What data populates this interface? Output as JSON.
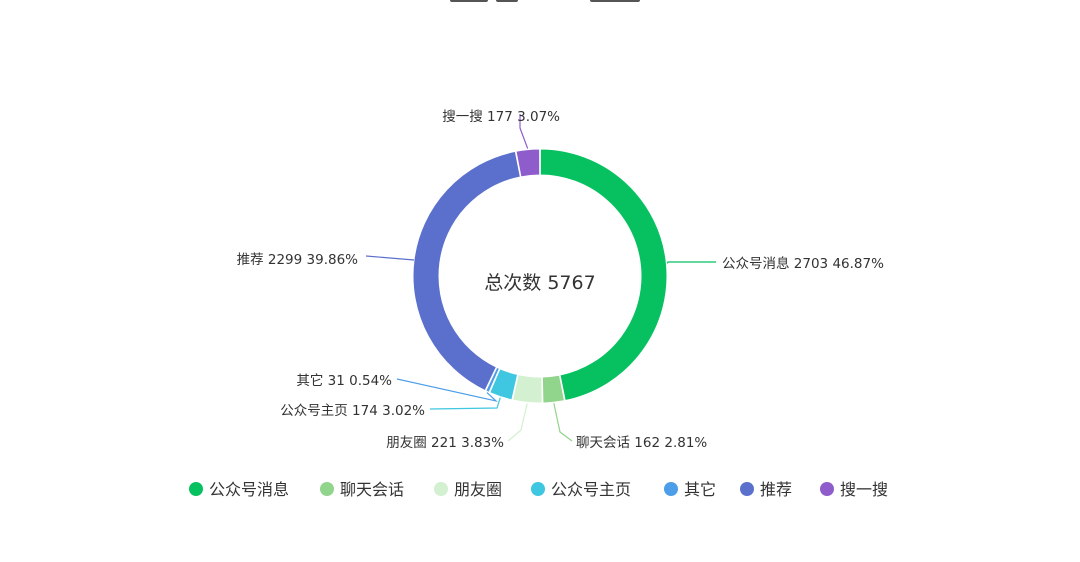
{
  "chart_data": {
    "type": "pie",
    "subtype": "donut",
    "center_label": "总次数 5767",
    "total": 5767,
    "slices": [
      {
        "name": "公众号消息",
        "value": 2703,
        "percent": "46.87%",
        "color": "#07c160",
        "label": "公众号消息 2703 46.87%"
      },
      {
        "name": "聊天会话",
        "value": 162,
        "percent": "2.81%",
        "color": "#91d48c",
        "label": "聊天会话 162 2.81%"
      },
      {
        "name": "朋友圈",
        "value": 221,
        "percent": "3.83%",
        "color": "#d3f0d0",
        "label": "朋友圈 221 3.83%"
      },
      {
        "name": "公众号主页",
        "value": 174,
        "percent": "3.02%",
        "color": "#3fc6e0",
        "label": "公众号主页 174 3.02%"
      },
      {
        "name": "其它",
        "value": 31,
        "percent": "0.54%",
        "color": "#4c9ee8",
        "label": "其它 31 0.54%"
      },
      {
        "name": "推荐",
        "value": 2299,
        "percent": "39.86%",
        "color": "#5b70cc",
        "label": "推荐 2299 39.86%"
      },
      {
        "name": "搜一搜",
        "value": 177,
        "percent": "3.07%",
        "color": "#8e5ccb",
        "label": "搜一搜 177 3.07%"
      }
    ],
    "legend": [
      "公众号消息",
      "聊天会话",
      "朋友圈",
      "公众号主页",
      "其它",
      "推荐",
      "搜一搜"
    ],
    "legend_position": "bottom"
  }
}
